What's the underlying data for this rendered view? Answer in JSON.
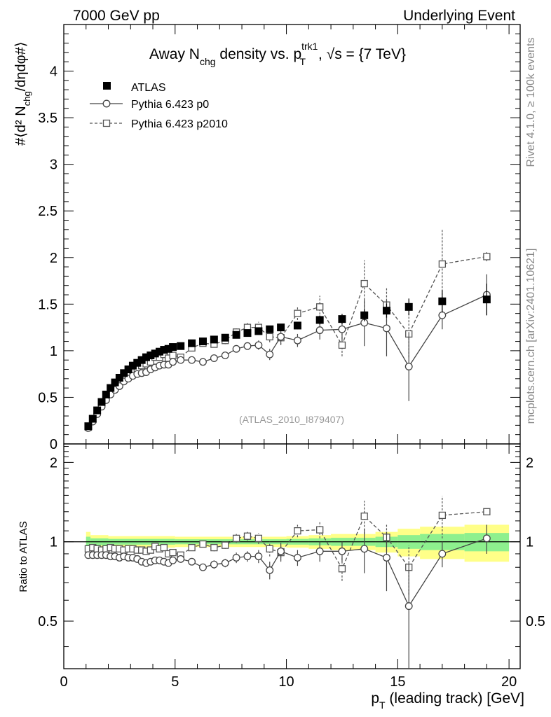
{
  "header": {
    "left": "7000 GeV pp",
    "right": "Underlying Event"
  },
  "side_labels": {
    "rivet": "Rivet 4.1.0, ≥ 100k events",
    "mcplots": "mcplots.cern.ch [arXiv:2401.10621]"
  },
  "title": {
    "part1": "Away N",
    "sub1": "chg",
    "part2": " density vs. p",
    "sup2": "trk1",
    "sub2": "T",
    "part3": ", √s = {7 TeV}"
  },
  "watermark": "(ATLAS_2010_I879407)",
  "axis_labels": {
    "y_main": "#⟨d² N",
    "y_main_sub": "chg",
    "y_main_end": "/dηdφ#⟩",
    "y_ratio": "Ratio to ATLAS",
    "x_main": "p",
    "x_sub": "T",
    "x_end": " (leading track) [GeV]"
  },
  "legend": [
    {
      "label": "ATLAS",
      "marker": "filled-square",
      "line": "none"
    },
    {
      "label": "Pythia 6.423 p0",
      "marker": "open-circle",
      "line": "solid"
    },
    {
      "label": "Pythia 6.423 p2010",
      "marker": "open-square",
      "line": "dashed"
    }
  ],
  "colors": {
    "data": "#000000",
    "p0": "#444444",
    "p2010": "#555555",
    "band_inner": "#8ef08e",
    "band_outer": "#ffff88",
    "watermark": "#999999",
    "side_text": "#888888"
  },
  "chart_data": {
    "type": "scatter",
    "xlim": [
      0,
      20.5
    ],
    "main": {
      "ylim": [
        0,
        4.5
      ],
      "yticks": [
        0,
        0.5,
        1,
        1.5,
        2,
        2.5,
        3,
        3.5,
        4
      ],
      "ytick_labels": [
        "0",
        "0.5",
        "1",
        "1.5",
        "2",
        "2.5",
        "3",
        "3.5",
        "4"
      ]
    },
    "ratio": {
      "ylim": [
        0.33,
        2.35
      ],
      "yticks": [
        0.5,
        1,
        2
      ],
      "ytick_labels": [
        "0.5",
        "1",
        "2"
      ]
    },
    "xticks": [
      0,
      5,
      10,
      15,
      20
    ],
    "xtick_labels": [
      "0",
      "5",
      "10",
      "15",
      "20"
    ],
    "x": [
      1.1,
      1.3,
      1.5,
      1.7,
      1.9,
      2.1,
      2.3,
      2.5,
      2.7,
      2.9,
      3.1,
      3.3,
      3.5,
      3.7,
      3.9,
      4.1,
      4.3,
      4.5,
      4.7,
      4.9,
      5.25,
      5.75,
      6.25,
      6.75,
      7.25,
      7.75,
      8.25,
      8.75,
      9.25,
      9.75,
      10.5,
      11.5,
      12.5,
      13.5,
      14.5,
      15.5,
      17.0,
      19.0
    ],
    "atlas": {
      "name": "ATLAS",
      "values": [
        0.19,
        0.27,
        0.36,
        0.45,
        0.53,
        0.6,
        0.66,
        0.71,
        0.76,
        0.8,
        0.84,
        0.87,
        0.9,
        0.93,
        0.95,
        0.97,
        0.99,
        1.01,
        1.02,
        1.04,
        1.05,
        1.08,
        1.1,
        1.12,
        1.14,
        1.17,
        1.19,
        1.21,
        1.23,
        1.25,
        1.27,
        1.33,
        1.34,
        1.38,
        1.43,
        1.47,
        1.53,
        1.55
      ],
      "errors": [
        0.004,
        0.005,
        0.006,
        0.007,
        0.008,
        0.009,
        0.01,
        0.011,
        0.012,
        0.012,
        0.013,
        0.013,
        0.014,
        0.014,
        0.015,
        0.015,
        0.016,
        0.016,
        0.017,
        0.017,
        0.018,
        0.019,
        0.02,
        0.022,
        0.024,
        0.026,
        0.028,
        0.03,
        0.032,
        0.035,
        0.04,
        0.048,
        0.055,
        0.065,
        0.075,
        0.09,
        0.12,
        0.17
      ]
    },
    "series": [
      {
        "name": "Pythia 6.423 p0",
        "values": [
          0.17,
          0.24,
          0.32,
          0.4,
          0.47,
          0.53,
          0.58,
          0.62,
          0.67,
          0.7,
          0.73,
          0.75,
          0.76,
          0.77,
          0.8,
          0.82,
          0.84,
          0.85,
          0.85,
          0.88,
          0.9,
          0.9,
          0.88,
          0.92,
          0.95,
          1.02,
          1.05,
          1.06,
          0.96,
          1.15,
          1.11,
          1.22,
          1.23,
          1.3,
          1.24,
          0.83,
          1.38,
          1.6
        ],
        "errors": [
          0.01,
          0.01,
          0.01,
          0.01,
          0.01,
          0.01,
          0.01,
          0.01,
          0.01,
          0.01,
          0.01,
          0.01,
          0.01,
          0.01,
          0.01,
          0.01,
          0.01,
          0.01,
          0.01,
          0.02,
          0.02,
          0.02,
          0.02,
          0.03,
          0.03,
          0.04,
          0.04,
          0.05,
          0.06,
          0.08,
          0.07,
          0.1,
          0.12,
          0.25,
          0.3,
          0.37,
          0.15,
          0.22
        ]
      },
      {
        "name": "Pythia 6.423 p2010",
        "values": [
          0.18,
          0.26,
          0.34,
          0.42,
          0.5,
          0.57,
          0.62,
          0.67,
          0.71,
          0.75,
          0.79,
          0.81,
          0.84,
          0.86,
          0.88,
          0.93,
          0.93,
          0.96,
          0.92,
          0.95,
          0.93,
          1.03,
          1.08,
          1.07,
          1.11,
          1.2,
          1.25,
          1.25,
          1.15,
          1.14,
          1.4,
          1.47,
          1.06,
          1.72,
          1.49,
          1.18,
          1.93,
          2.01
        ],
        "errors": [
          0.01,
          0.01,
          0.01,
          0.01,
          0.01,
          0.01,
          0.01,
          0.01,
          0.01,
          0.01,
          0.01,
          0.01,
          0.01,
          0.01,
          0.01,
          0.01,
          0.01,
          0.01,
          0.01,
          0.02,
          0.02,
          0.02,
          0.03,
          0.03,
          0.04,
          0.04,
          0.05,
          0.06,
          0.06,
          0.08,
          0.07,
          0.12,
          0.12,
          0.25,
          0.18,
          0.25,
          0.37,
          0.05
        ]
      }
    ],
    "ratio_values": {
      "p0": [
        0.89,
        0.89,
        0.89,
        0.89,
        0.89,
        0.88,
        0.88,
        0.87,
        0.88,
        0.87,
        0.87,
        0.86,
        0.84,
        0.83,
        0.84,
        0.85,
        0.85,
        0.84,
        0.83,
        0.85,
        0.86,
        0.84,
        0.8,
        0.82,
        0.83,
        0.87,
        0.88,
        0.88,
        0.78,
        0.92,
        0.87,
        0.92,
        0.92,
        0.94,
        0.87,
        0.57,
        0.9,
        1.03
      ],
      "p2010": [
        0.94,
        0.95,
        0.94,
        0.93,
        0.94,
        0.95,
        0.94,
        0.94,
        0.93,
        0.94,
        0.94,
        0.93,
        0.93,
        0.92,
        0.93,
        0.96,
        0.94,
        0.95,
        0.9,
        0.91,
        0.89,
        0.95,
        0.98,
        0.95,
        0.97,
        1.03,
        1.05,
        1.03,
        0.94,
        0.91,
        1.1,
        1.11,
        0.79,
        1.25,
        1.04,
        0.8,
        1.26,
        1.3
      ],
      "p2010_errors": [
        0.01,
        0.01,
        0.01,
        0.01,
        0.01,
        0.01,
        0.01,
        0.01,
        0.01,
        0.01,
        0.01,
        0.01,
        0.01,
        0.01,
        0.01,
        0.01,
        0.01,
        0.01,
        0.01,
        0.02,
        0.02,
        0.02,
        0.02,
        0.03,
        0.03,
        0.04,
        0.04,
        0.05,
        0.06,
        0.07,
        0.06,
        0.08,
        0.08,
        0.18,
        0.12,
        0.17,
        0.23,
        0.03
      ],
      "p0_errors": [
        0.01,
        0.01,
        0.01,
        0.01,
        0.01,
        0.01,
        0.01,
        0.01,
        0.01,
        0.01,
        0.01,
        0.01,
        0.01,
        0.01,
        0.01,
        0.01,
        0.01,
        0.01,
        0.01,
        0.02,
        0.02,
        0.02,
        0.02,
        0.03,
        0.03,
        0.04,
        0.04,
        0.05,
        0.06,
        0.07,
        0.06,
        0.08,
        0.08,
        0.18,
        0.22,
        0.26,
        0.1,
        0.13
      ]
    },
    "uncertainty_band": {
      "edges": [
        1.0,
        1.2,
        2.0,
        5.0,
        10.0,
        11.0,
        12.0,
        14.0,
        15.0,
        16.0,
        18.0,
        20.0
      ],
      "inner": [
        0.045,
        0.03,
        0.025,
        0.022,
        0.025,
        0.03,
        0.035,
        0.045,
        0.06,
        0.07,
        0.08
      ],
      "outer": [
        0.09,
        0.06,
        0.05,
        0.045,
        0.05,
        0.06,
        0.07,
        0.09,
        0.12,
        0.14,
        0.16
      ]
    }
  }
}
